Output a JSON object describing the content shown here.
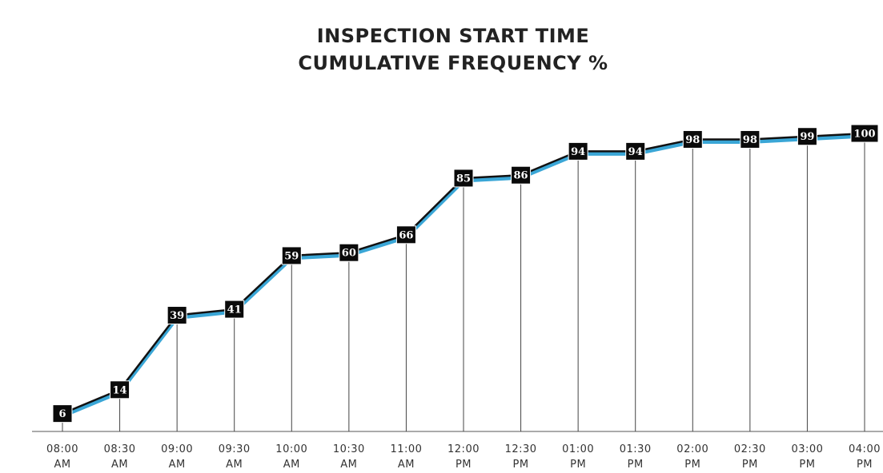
{
  "chart_data": {
    "type": "line",
    "title": "INSPECTION START TIME CUMULATIVE FREQUENCY %",
    "categories": [
      "08:00 AM",
      "08:30 AM",
      "09:00 AM",
      "09:30 AM",
      "10:00 AM",
      "10:30 AM",
      "11:00 AM",
      "12:00 PM",
      "12:30 PM",
      "01:00 PM",
      "01:30 PM",
      "02:00 PM",
      "02:30 PM",
      "03:00 PM",
      "04:00 PM"
    ],
    "series": [
      {
        "color": "#3aa6d6",
        "values": [
          6,
          14,
          39,
          41,
          59,
          60,
          66,
          85,
          86,
          94,
          94,
          98,
          98,
          99,
          100
        ]
      }
    ],
    "ylim": [
      0,
      100
    ]
  }
}
